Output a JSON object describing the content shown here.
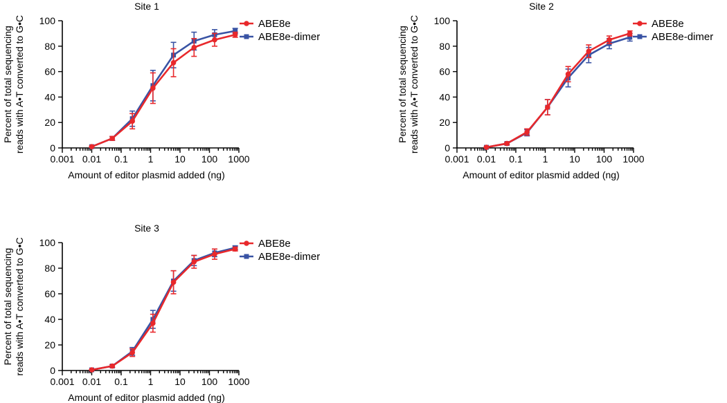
{
  "colors": {
    "ABE8e": "#e8282b",
    "ABE8e-dimer": "#3953a4"
  },
  "chart_data": [
    {
      "type": "line",
      "title": "Site 1",
      "xlabel": "Amount of editor plasmid added (ng)",
      "ylabel_lines": [
        "Percent of total sequencing",
        "reads with A•T converted to G•C"
      ],
      "xscale": "log",
      "xlim": [
        0.001,
        1000
      ],
      "ylim": [
        0,
        100
      ],
      "xticks": [
        "0.001",
        "0.01",
        "0.1",
        "1",
        "10",
        "100",
        "1000"
      ],
      "yticks": [
        "0",
        "20",
        "40",
        "60",
        "80",
        "100"
      ],
      "legend": "top-right",
      "x": [
        0.01,
        0.05,
        0.24,
        1.2,
        6,
        30,
        150,
        750
      ],
      "series": [
        {
          "name": "ABE8e-dimer",
          "marker": "square",
          "values": [
            1,
            7.5,
            23,
            49,
            73,
            84,
            89,
            92
          ],
          "err": [
            0.5,
            1.5,
            6,
            12,
            10,
            7,
            4,
            2
          ]
        },
        {
          "name": "ABE8e",
          "marker": "circle",
          "values": [
            1,
            7.5,
            21,
            47,
            67,
            79,
            85,
            89
          ],
          "err": [
            0.5,
            1.5,
            6,
            12,
            11,
            7,
            5,
            2
          ]
        }
      ]
    },
    {
      "type": "line",
      "title": "Site 2",
      "xlabel": "Amount of editor plasmid added (ng)",
      "ylabel_lines": [
        "Percent of total sequencing",
        "reads with A•T converted to G•C"
      ],
      "xscale": "log",
      "xlim": [
        0.001,
        1000
      ],
      "ylim": [
        0,
        100
      ],
      "xticks": [
        "0.001",
        "0.01",
        "0.1",
        "1",
        "10",
        "100",
        "1000"
      ],
      "yticks": [
        "0",
        "20",
        "40",
        "60",
        "80",
        "100"
      ],
      "legend": "top-right",
      "x": [
        0.01,
        0.05,
        0.24,
        1.2,
        6,
        30,
        150,
        750
      ],
      "series": [
        {
          "name": "ABE8e-dimer",
          "marker": "square",
          "values": [
            0.5,
            3.5,
            12,
            32,
            55,
            73,
            82,
            87
          ],
          "err": [
            0.3,
            1,
            2.5,
            6,
            7,
            6,
            4,
            3
          ]
        },
        {
          "name": "ABE8e",
          "marker": "circle",
          "values": [
            0.5,
            3.5,
            12.5,
            32,
            58,
            76,
            85,
            90
          ],
          "err": [
            0.3,
            1,
            2.5,
            6,
            6,
            5,
            3,
            2
          ]
        }
      ]
    },
    {
      "type": "line",
      "title": "Site 3",
      "xlabel": "Amount of editor plasmid added (ng)",
      "ylabel_lines": [
        "Percent of total sequencing",
        "reads with A•T converted to G•C"
      ],
      "xscale": "log",
      "xlim": [
        0.001,
        1000
      ],
      "ylim": [
        0,
        100
      ],
      "xticks": [
        "0.001",
        "0.01",
        "0.1",
        "1",
        "10",
        "100",
        "1000"
      ],
      "yticks": [
        "0",
        "20",
        "40",
        "60",
        "80",
        "100"
      ],
      "legend": "top-right",
      "x": [
        0.01,
        0.05,
        0.24,
        1.2,
        6,
        30,
        150,
        750
      ],
      "series": [
        {
          "name": "ABE8e-dimer",
          "marker": "square",
          "values": [
            0.5,
            3.5,
            15,
            40,
            70,
            86,
            92,
            96
          ],
          "err": [
            0.3,
            1,
            3,
            7,
            8,
            4,
            3,
            1.5
          ]
        },
        {
          "name": "ABE8e",
          "marker": "circle",
          "values": [
            0.5,
            3.5,
            14,
            37,
            69,
            85,
            91,
            95
          ],
          "err": [
            0.3,
            1,
            3,
            7,
            9,
            5,
            4,
            1.5
          ]
        }
      ]
    }
  ]
}
